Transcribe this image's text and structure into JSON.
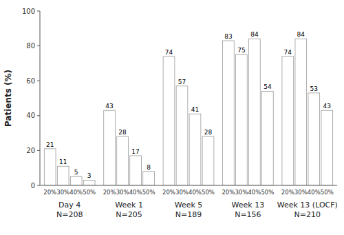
{
  "chart_data": {
    "type": "bar",
    "ylabel": "Patients (%)",
    "categories": [
      "Day 4\nN=208",
      "Week 1\nN=205",
      "Week 5\nN=189",
      "Week 13\nN=156",
      "Week 13 (LOCF)\nN=210"
    ],
    "series": [
      {
        "name": "20%",
        "color": "#ffffff",
        "values": [
          21,
          43,
          74,
          83,
          74
        ]
      },
      {
        "name": "30%",
        "color": "#ffffff",
        "values": [
          11,
          28,
          57,
          75,
          84
        ]
      },
      {
        "name": "40%",
        "color": "#ffffff",
        "values": [
          5,
          17,
          41,
          84,
          53
        ]
      },
      {
        "name": "50%",
        "color": "#ffffff",
        "values": [
          3,
          8,
          28,
          54,
          43
        ]
      }
    ],
    "ylim": [
      0,
      100
    ],
    "yticks": [
      0,
      20,
      40,
      60,
      80,
      100
    ],
    "grid": false,
    "data_labels": true
  }
}
